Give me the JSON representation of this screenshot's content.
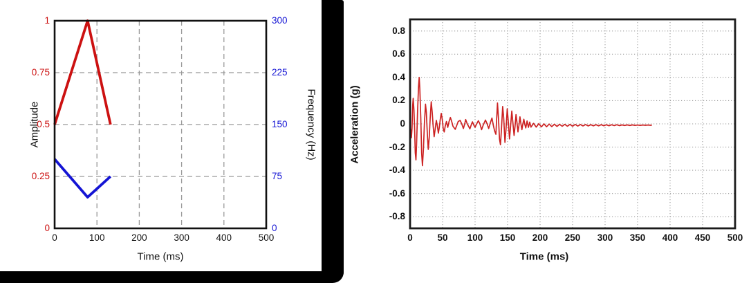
{
  "page": {
    "background": "#ffffff"
  },
  "colors": {
    "amplitude_red": "#cc1111",
    "frequency_blue": "#1414d4",
    "acceleration_red": "#cc2222",
    "grid_gray": "#999999",
    "frame_black": "#111111",
    "panel_border_black": "#000000"
  },
  "chart_data": [
    {
      "type": "line",
      "title": "",
      "xlabel": "Time (ms)",
      "ylabel_left": "Amplitude",
      "ylabel_right": "Frequency (Hz)",
      "xlim": [
        0,
        500
      ],
      "ylim_left": [
        0,
        1
      ],
      "ylim_right": [
        0,
        300
      ],
      "x_ticks": [
        0,
        100,
        200,
        300,
        400,
        500
      ],
      "y_ticks_left": [
        0,
        0.25,
        0.5,
        0.75,
        1
      ],
      "y_ticks_right": [
        0,
        75,
        150,
        225,
        300
      ],
      "grid": "dashed",
      "legend": "none",
      "series": [
        {
          "name": "Amplitude",
          "axis": "left",
          "color": "#cc1111",
          "points": [
            [
              0,
              0.5
            ],
            [
              78,
              1.0
            ],
            [
              132,
              0.5
            ]
          ]
        },
        {
          "name": "Frequency (Hz)",
          "axis": "right",
          "color": "#1414d4",
          "points": [
            [
              0,
              100
            ],
            [
              78,
              45
            ],
            [
              132,
              75
            ]
          ]
        }
      ]
    },
    {
      "type": "line",
      "title": "",
      "xlabel": "Time (ms)",
      "ylabel": "Acceleration (g)",
      "xlim": [
        0,
        500
      ],
      "ylim": [
        -0.9,
        0.9
      ],
      "x_ticks": [
        0,
        50,
        100,
        150,
        200,
        250,
        300,
        350,
        400,
        450,
        500
      ],
      "y_ticks": [
        0.8,
        0.6,
        0.4,
        0.2,
        0,
        -0.2,
        -0.4,
        -0.6,
        -0.8
      ],
      "grid": "dotted",
      "legend": "none",
      "series": [
        {
          "name": "Acceleration (g)",
          "color": "#cc2222",
          "points": [
            [
              0,
              0
            ],
            [
              1,
              -0.05
            ],
            [
              2,
              -0.12
            ],
            [
              3,
              -0.04
            ],
            [
              4,
              0.16
            ],
            [
              4.8,
              0.22
            ],
            [
              6,
              0.12
            ],
            [
              7,
              -0.05
            ],
            [
              8,
              -0.25
            ],
            [
              9,
              -0.31
            ],
            [
              10,
              -0.18
            ],
            [
              11.5,
              0.1
            ],
            [
              13,
              0.32
            ],
            [
              14,
              0.4
            ],
            [
              15,
              0.3
            ],
            [
              16.5,
              0.05
            ],
            [
              17.8,
              -0.25
            ],
            [
              19,
              -0.36
            ],
            [
              20.5,
              -0.22
            ],
            [
              22,
              0
            ],
            [
              23.7,
              0.17
            ],
            [
              25,
              0.1
            ],
            [
              26.5,
              -0.08
            ],
            [
              28,
              -0.22
            ],
            [
              29.5,
              -0.12
            ],
            [
              31,
              0.05
            ],
            [
              32.5,
              0.19
            ],
            [
              34,
              0.1
            ],
            [
              35.5,
              -0.02
            ],
            [
              37,
              -0.11
            ],
            [
              38.5,
              -0.05
            ],
            [
              40.4,
              0.03
            ],
            [
              42,
              -0.02
            ],
            [
              43.5,
              -0.08
            ],
            [
              45,
              -0.03
            ],
            [
              46.5,
              0.04
            ],
            [
              48,
              0.09
            ],
            [
              49.5,
              0.04
            ],
            [
              51,
              -0.04
            ],
            [
              52.5,
              -0.07
            ],
            [
              54,
              -0.02
            ],
            [
              56,
              0.02
            ],
            [
              58,
              -0.03
            ],
            [
              60,
              0.02
            ],
            [
              62,
              0.055
            ],
            [
              64,
              0.02
            ],
            [
              66,
              -0.02
            ],
            [
              69.5,
              -0.047
            ],
            [
              72,
              -0.01
            ],
            [
              74,
              0.02
            ],
            [
              77,
              0.03
            ],
            [
              79.5,
              0
            ],
            [
              82,
              -0.04
            ],
            [
              84,
              0
            ],
            [
              85.5,
              0.037
            ],
            [
              88,
              0
            ],
            [
              92,
              -0.043
            ],
            [
              94,
              -0.01
            ],
            [
              96,
              0.017
            ],
            [
              98,
              -0.01
            ],
            [
              100,
              -0.03
            ],
            [
              102,
              -0.005
            ],
            [
              105,
              0.027
            ],
            [
              107.5,
              0
            ],
            [
              110,
              -0.05
            ],
            [
              112.5,
              -0.01
            ],
            [
              116,
              0.033
            ],
            [
              118.5,
              0
            ],
            [
              121,
              -0.04
            ],
            [
              123.5,
              0.01
            ],
            [
              126,
              0.05
            ],
            [
              128,
              -0.01
            ],
            [
              130,
              -0.06
            ],
            [
              132,
              -0.09
            ],
            [
              133,
              0.02
            ],
            [
              134.5,
              0.18
            ],
            [
              136,
              0.05
            ],
            [
              137.5,
              -0.13
            ],
            [
              139,
              -0.18
            ],
            [
              140.5,
              -0.05
            ],
            [
              142.5,
              0.15
            ],
            [
              144,
              0.05
            ],
            [
              146,
              -0.16
            ],
            [
              147.5,
              -0.05
            ],
            [
              149.5,
              0.13
            ],
            [
              151,
              0.03
            ],
            [
              153,
              -0.13
            ],
            [
              154.5,
              -0.03
            ],
            [
              156.5,
              0.11
            ],
            [
              158,
              0.02
            ],
            [
              160,
              -0.1
            ],
            [
              161.5,
              -0.02
            ],
            [
              163,
              0.08
            ],
            [
              164.5,
              0.01
            ],
            [
              166,
              -0.07
            ],
            [
              167.5,
              -0.01
            ],
            [
              169,
              0.06
            ],
            [
              170.5,
              0
            ],
            [
              172,
              -0.05
            ],
            [
              173.5,
              0
            ],
            [
              175,
              0.04
            ],
            [
              176.5,
              -0.005
            ],
            [
              178,
              -0.035
            ],
            [
              180,
              0.025
            ],
            [
              182,
              -0.03
            ],
            [
              184,
              0.015
            ],
            [
              186,
              -0.028
            ],
            [
              190,
              0.004
            ],
            [
              194,
              -0.028
            ],
            [
              198,
              0.002
            ],
            [
              202,
              -0.026
            ],
            [
              206,
              0
            ],
            [
              210,
              -0.025
            ],
            [
              214,
              -0.002
            ],
            [
              218,
              -0.024
            ],
            [
              222,
              -0.003
            ],
            [
              226,
              -0.022
            ],
            [
              230,
              -0.004
            ],
            [
              234,
              -0.021
            ],
            [
              238,
              -0.004
            ],
            [
              242,
              -0.02
            ],
            [
              246,
              -0.005
            ],
            [
              250,
              -0.02
            ],
            [
              254,
              -0.005
            ],
            [
              258,
              -0.019
            ],
            [
              262,
              -0.006
            ],
            [
              266,
              -0.018
            ],
            [
              270,
              -0.006
            ],
            [
              274,
              -0.018
            ],
            [
              278,
              -0.007
            ],
            [
              282,
              -0.017
            ],
            [
              286,
              -0.007
            ],
            [
              290,
              -0.017
            ],
            [
              294,
              -0.007
            ],
            [
              298,
              -0.016
            ],
            [
              302,
              -0.008
            ],
            [
              306,
              -0.016
            ],
            [
              310,
              -0.008
            ],
            [
              314,
              -0.015
            ],
            [
              318,
              -0.008
            ],
            [
              322,
              -0.015
            ],
            [
              326,
              -0.009
            ],
            [
              330,
              -0.014
            ],
            [
              334,
              -0.009
            ],
            [
              338,
              -0.014
            ],
            [
              342,
              -0.009
            ],
            [
              346,
              -0.013
            ],
            [
              350,
              -0.01
            ],
            [
              354,
              -0.013
            ],
            [
              358,
              -0.01
            ],
            [
              362,
              -0.012
            ],
            [
              366,
              -0.01
            ],
            [
              370,
              -0.012
            ],
            [
              372,
              -0.011
            ]
          ]
        }
      ]
    }
  ]
}
